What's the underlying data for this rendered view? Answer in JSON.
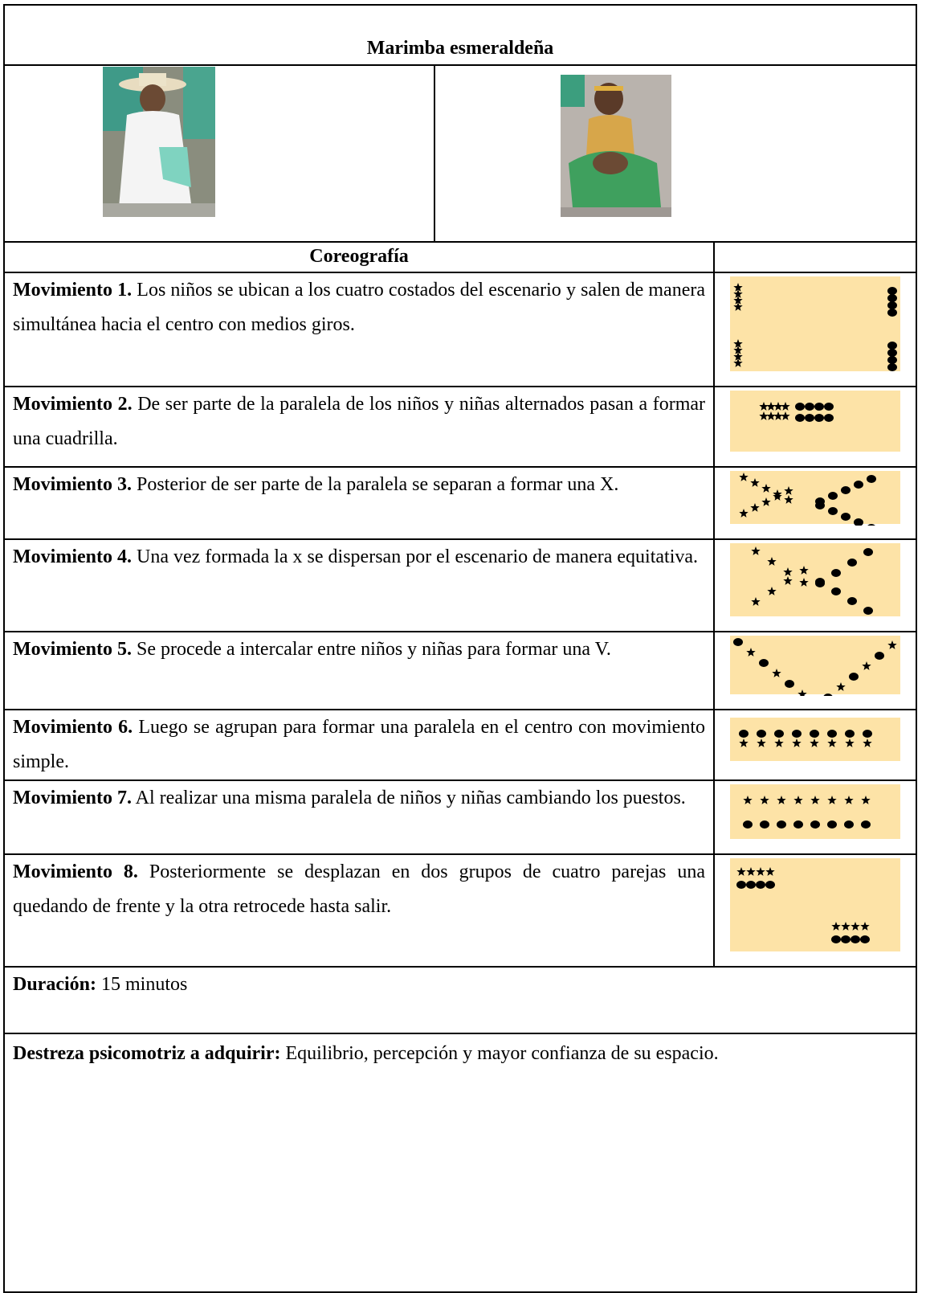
{
  "title": "Marimba esmeraldeña",
  "choreography_header": "Coreografía",
  "movements": [
    {
      "label": "Movimiento 1.",
      "text": "Los niños se ubican a los cuatro costados del escenario y salen de manera simultánea hacia el centro con medios giros."
    },
    {
      "label": "Movimiento 2.",
      "text": "De ser parte de la paralela de los niños y niñas alternados pasan a formar una cuadrilla."
    },
    {
      "label": "Movimiento 3.",
      "text": "Posterior de ser parte de la paralela se separan a formar una X."
    },
    {
      "label": "Movimiento 4.",
      "text": "Una vez formada la x se dispersan por el escenario de manera equitativa."
    },
    {
      "label": "Movimiento 5.",
      "text": "Se procede a intercalar entre niños y niñas para formar una V."
    },
    {
      "label": "Movimiento 6.",
      "text": "Luego se agrupan para formar una paralela en el centro con movimiento simple."
    },
    {
      "label": "Movimiento 7.",
      "text": "Al realizar una misma paralela de niños y niñas cambiando los puestos."
    },
    {
      "label": "Movimiento 8.",
      "text": "Posteriormente se desplazan en dos grupos de cuatro parejas una quedando de frente y la otra retrocede hasta salir."
    }
  ],
  "duration": {
    "label": "Duración:",
    "text": "15 minutos"
  },
  "skill": {
    "label": "Destreza psicomotriz a adquirir:",
    "text": "Equilibrio, percepción y mayor confianza de su espacio."
  }
}
